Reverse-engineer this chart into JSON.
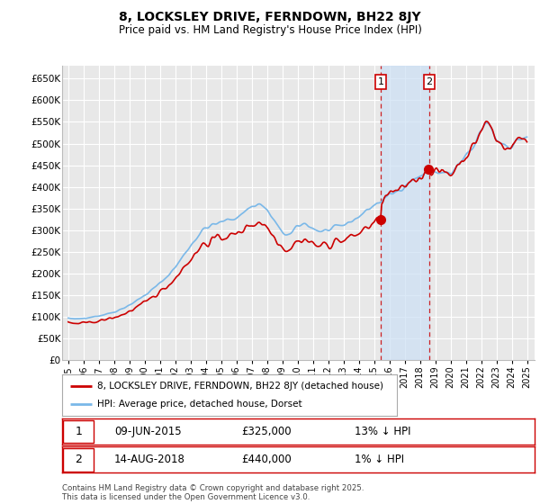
{
  "title": "8, LOCKSLEY DRIVE, FERNDOWN, BH22 8JY",
  "subtitle": "Price paid vs. HM Land Registry's House Price Index (HPI)",
  "background_color": "#ffffff",
  "plot_bg_color": "#e8e8e8",
  "grid_color": "#ffffff",
  "hpi_color": "#7ab8e8",
  "price_color": "#cc0000",
  "shade_color": "#cce0f5",
  "ylim": [
    0,
    680000
  ],
  "yticks": [
    0,
    50000,
    100000,
    150000,
    200000,
    250000,
    300000,
    350000,
    400000,
    450000,
    500000,
    550000,
    600000,
    650000
  ],
  "ytick_labels": [
    "£0",
    "£50K",
    "£100K",
    "£150K",
    "£200K",
    "£250K",
    "£300K",
    "£350K",
    "£400K",
    "£450K",
    "£500K",
    "£550K",
    "£600K",
    "£650K"
  ],
  "sale1_date": "09-JUN-2015",
  "sale1_price": 325000,
  "sale1_label": "13% ↓ HPI",
  "sale2_date": "14-AUG-2018",
  "sale2_price": 440000,
  "sale2_label": "1% ↓ HPI",
  "legend_line1": "8, LOCKSLEY DRIVE, FERNDOWN, BH22 8JY (detached house)",
  "legend_line2": "HPI: Average price, detached house, Dorset",
  "footnote": "Contains HM Land Registry data © Crown copyright and database right 2025.\nThis data is licensed under the Open Government Licence v3.0.",
  "sale1_x": 2015.44,
  "sale2_x": 2018.62,
  "xlim_left": 1994.6,
  "xlim_right": 2025.5
}
